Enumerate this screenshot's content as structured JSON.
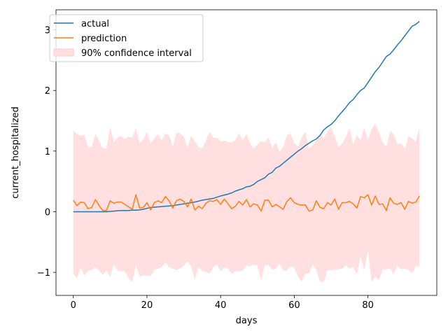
{
  "chart_data": {
    "type": "line",
    "title": "",
    "xlabel": "days",
    "ylabel": "current_hospitalized",
    "xlim": [
      -4.7,
      98.7
    ],
    "ylim": [
      -1.38,
      3.33
    ],
    "xticks": [
      0,
      20,
      40,
      60,
      80
    ],
    "yticks": [
      -1,
      0,
      1,
      2,
      3
    ],
    "grid": false,
    "legend_position": "upper left",
    "x": [
      0,
      1,
      2,
      3,
      4,
      5,
      6,
      7,
      8,
      9,
      10,
      11,
      12,
      13,
      14,
      15,
      16,
      17,
      18,
      19,
      20,
      21,
      22,
      23,
      24,
      25,
      26,
      27,
      28,
      29,
      30,
      31,
      32,
      33,
      34,
      35,
      36,
      37,
      38,
      39,
      40,
      41,
      42,
      43,
      44,
      45,
      46,
      47,
      48,
      49,
      50,
      51,
      52,
      53,
      54,
      55,
      56,
      57,
      58,
      59,
      60,
      61,
      62,
      63,
      64,
      65,
      66,
      67,
      68,
      69,
      70,
      71,
      72,
      73,
      74,
      75,
      76,
      77,
      78,
      79,
      80,
      81,
      82,
      83,
      84,
      85,
      86,
      87,
      88,
      89,
      90,
      91,
      92,
      93,
      94
    ],
    "series": [
      {
        "name": "actual",
        "color": "#1f77b4",
        "values": [
          0,
          0,
          0,
          0,
          0,
          0,
          0,
          0,
          0,
          0,
          0.005,
          0.01,
          0.015,
          0.02,
          0.02,
          0.02,
          0.025,
          0.025,
          0.03,
          0.04,
          0.055,
          0.07,
          0.075,
          0.08,
          0.085,
          0.09,
          0.095,
          0.1,
          0.11,
          0.12,
          0.13,
          0.14,
          0.15,
          0.16,
          0.175,
          0.19,
          0.2,
          0.21,
          0.22,
          0.24,
          0.26,
          0.275,
          0.29,
          0.31,
          0.34,
          0.36,
          0.38,
          0.41,
          0.42,
          0.45,
          0.5,
          0.53,
          0.56,
          0.62,
          0.65,
          0.72,
          0.75,
          0.8,
          0.85,
          0.9,
          0.95,
          1.0,
          1.04,
          1.09,
          1.13,
          1.17,
          1.2,
          1.26,
          1.35,
          1.4,
          1.44,
          1.5,
          1.58,
          1.65,
          1.72,
          1.8,
          1.85,
          1.93,
          2.0,
          2.04,
          2.13,
          2.22,
          2.31,
          2.38,
          2.47,
          2.56,
          2.6,
          2.67,
          2.75,
          2.82,
          2.9,
          2.98,
          3.06,
          3.09,
          3.14
        ]
      },
      {
        "name": "prediction",
        "color": "#ff7f0e",
        "values": [
          0.19,
          0.1,
          0.16,
          0.15,
          0.05,
          0.07,
          0.2,
          0.1,
          0.02,
          0.02,
          0.18,
          0.14,
          0.16,
          0.16,
          0.12,
          0.08,
          0.04,
          0.28,
          0.06,
          0.07,
          0.15,
          0.03,
          0.15,
          0.18,
          0.15,
          0.25,
          0.18,
          0.06,
          0.18,
          0.21,
          0.17,
          0.08,
          0.21,
          0.03,
          0.09,
          0.05,
          0.14,
          0.18,
          0.17,
          0.2,
          0.12,
          0.21,
          0.13,
          0.05,
          0.09,
          0.17,
          0.11,
          0.2,
          0.08,
          0.13,
          0.11,
          0.01,
          0.19,
          0.19,
          0.08,
          0.12,
          0.08,
          0.04,
          0.17,
          0.23,
          0.15,
          0.12,
          0.11,
          0.11,
          0.01,
          0.03,
          0.18,
          0.07,
          0.05,
          0.15,
          0.11,
          0.21,
          0.04,
          0.15,
          0.15,
          0.17,
          0.13,
          0.06,
          0.25,
          0.23,
          0.28,
          0.11,
          0.26,
          0.12,
          0.13,
          0.02,
          0.23,
          0.14,
          0.12,
          0.15,
          0.04,
          0.17,
          0.14,
          0.16,
          0.26
        ]
      }
    ],
    "confidence_interval": {
      "name": "90% confidence interval",
      "color": "#ffdfe0",
      "upper": [
        1.34,
        1.28,
        1.25,
        1.27,
        1.06,
        1.07,
        1.28,
        1.17,
        1.05,
        1.04,
        1.4,
        1.15,
        1.22,
        1.25,
        1.2,
        1.24,
        1.22,
        1.38,
        1.13,
        1.19,
        1.32,
        1.13,
        1.21,
        1.28,
        1.18,
        1.29,
        1.26,
        1.07,
        1.3,
        1.29,
        1.24,
        1.05,
        1.25,
        1.16,
        1.06,
        1.05,
        1.17,
        1.32,
        1.22,
        1.22,
        1.16,
        1.17,
        1.15,
        1.14,
        1.18,
        1.29,
        1.18,
        1.28,
        1.13,
        1.04,
        1.11,
        1.16,
        1.15,
        1.22,
        1.06,
        1.14,
        0.98,
        1.07,
        1.26,
        1.29,
        1.13,
        1.07,
        1.22,
        1.32,
        1.04,
        1.1,
        1.18,
        1.27,
        1.22,
        1.32,
        1.4,
        1.24,
        1.06,
        1.12,
        1.23,
        1.38,
        1.1,
        1.27,
        1.18,
        1.38,
        1.18,
        1.36,
        1.46,
        1.3,
        1.15,
        1.07,
        1.33,
        1.28,
        1.11,
        1.13,
        1.04,
        1.24,
        1.21,
        1.15,
        1.39
      ],
      "lower": [
        -1.02,
        -1.1,
        -0.92,
        -1.05,
        -0.98,
        -0.96,
        -0.92,
        -0.97,
        -1.04,
        -0.97,
        -1.08,
        -0.87,
        -0.97,
        -0.98,
        -0.98,
        -1.1,
        -1.16,
        -0.88,
        -1.07,
        -1.05,
        -1.05,
        -1.06,
        -0.96,
        -0.94,
        -0.91,
        -0.83,
        -0.92,
        -0.94,
        -0.96,
        -0.93,
        -0.89,
        -0.82,
        -0.91,
        -1.11,
        -0.92,
        -0.97,
        -0.99,
        -1.02,
        -0.92,
        -0.87,
        -0.98,
        -0.92,
        -0.93,
        -1.03,
        -0.98,
        -0.98,
        -0.97,
        -0.88,
        -0.9,
        -0.87,
        -0.89,
        -1.13,
        -0.88,
        -0.88,
        -0.96,
        -0.94,
        -0.86,
        -0.97,
        -0.97,
        -0.9,
        -0.92,
        -1.07,
        -1.15,
        -1.02,
        -1.02,
        -0.87,
        -0.96,
        -1.16,
        -1.15,
        -0.97,
        -0.96,
        -0.96,
        -0.95,
        -0.94,
        -0.88,
        -0.94,
        -0.91,
        -1.04,
        -0.73,
        -0.97,
        -0.63,
        -1.16,
        -1.07,
        -1.13,
        -0.95,
        -0.95,
        -0.93,
        -1.03,
        -0.89,
        -0.95,
        -0.94,
        -0.96,
        -1.01,
        -0.89,
        -0.91
      ]
    }
  }
}
